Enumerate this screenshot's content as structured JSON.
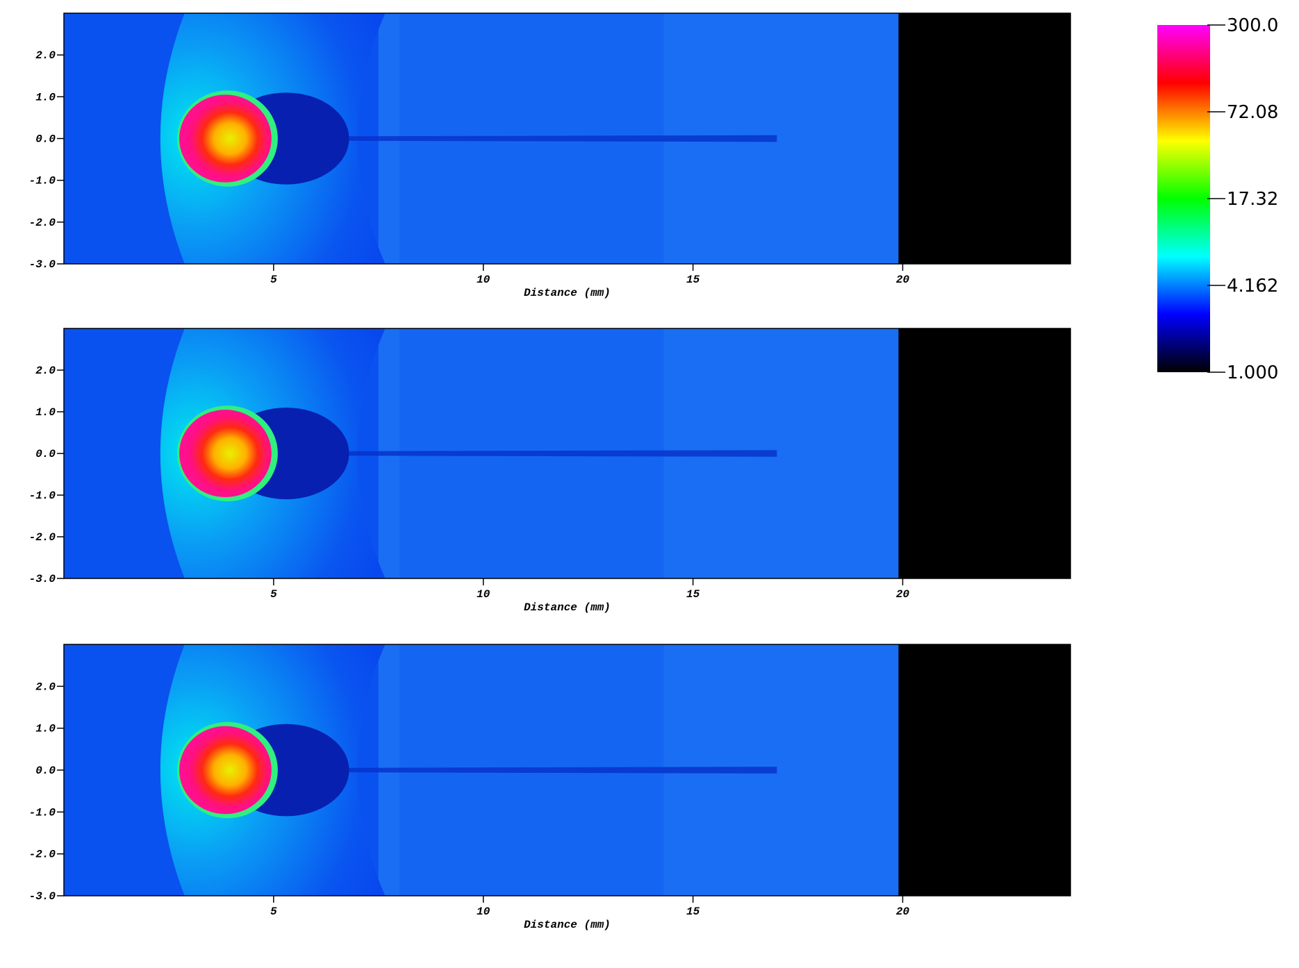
{
  "chart_data": [
    {
      "type": "heatmap",
      "xlabel": "Distance (mm)",
      "xlim": [
        0,
        24
      ],
      "xticks": [
        5,
        10,
        15,
        20
      ],
      "ylim": [
        -3,
        3
      ],
      "yticks": [
        {
          "value": -3,
          "label": "-3.0"
        },
        {
          "value": -2,
          "label": "-2.0"
        },
        {
          "value": -1,
          "label": "-1.0"
        },
        {
          "value": 0,
          "label": "0.0"
        },
        {
          "value": 1,
          "label": "1.0"
        },
        {
          "value": 2,
          "label": "2.0"
        }
      ]
    },
    {
      "type": "heatmap",
      "xlabel": "Distance (mm)",
      "xlim": [
        0,
        24
      ],
      "xticks": [
        5,
        10,
        15,
        20
      ],
      "ylim": [
        -3,
        3
      ],
      "yticks": [
        {
          "value": -3,
          "label": "-3.0"
        },
        {
          "value": -2,
          "label": "-2.0"
        },
        {
          "value": -1,
          "label": "-1.0"
        },
        {
          "value": 0,
          "label": "0.0"
        },
        {
          "value": 1,
          "label": "1.0"
        },
        {
          "value": 2,
          "label": "2.0"
        }
      ]
    },
    {
      "type": "heatmap",
      "xlabel": "Distance (mm)",
      "xlim": [
        0,
        24
      ],
      "xticks": [
        5,
        10,
        15,
        20
      ],
      "ylim": [
        -3,
        3
      ],
      "yticks": [
        {
          "value": -3,
          "label": "-3.0"
        },
        {
          "value": -2,
          "label": "-2.0"
        },
        {
          "value": -1,
          "label": "-1.0"
        },
        {
          "value": 0,
          "label": "0.0"
        },
        {
          "value": 1,
          "label": "1.0"
        },
        {
          "value": 2,
          "label": "2.0"
        }
      ]
    },
    {
      "type": "colorbar",
      "log_scale": true,
      "range": [
        1,
        300
      ],
      "colormap": [
        "#000000",
        "#0000ff",
        "#00ffff",
        "#00ff00",
        "#ffff00",
        "#ff0000",
        "#ff00ff"
      ],
      "ticks": [
        {
          "value": 300,
          "label": "300.0"
        },
        72.08,
        17.32,
        4.162,
        {
          "value": 1,
          "label": "1.000"
        }
      ]
    }
  ]
}
